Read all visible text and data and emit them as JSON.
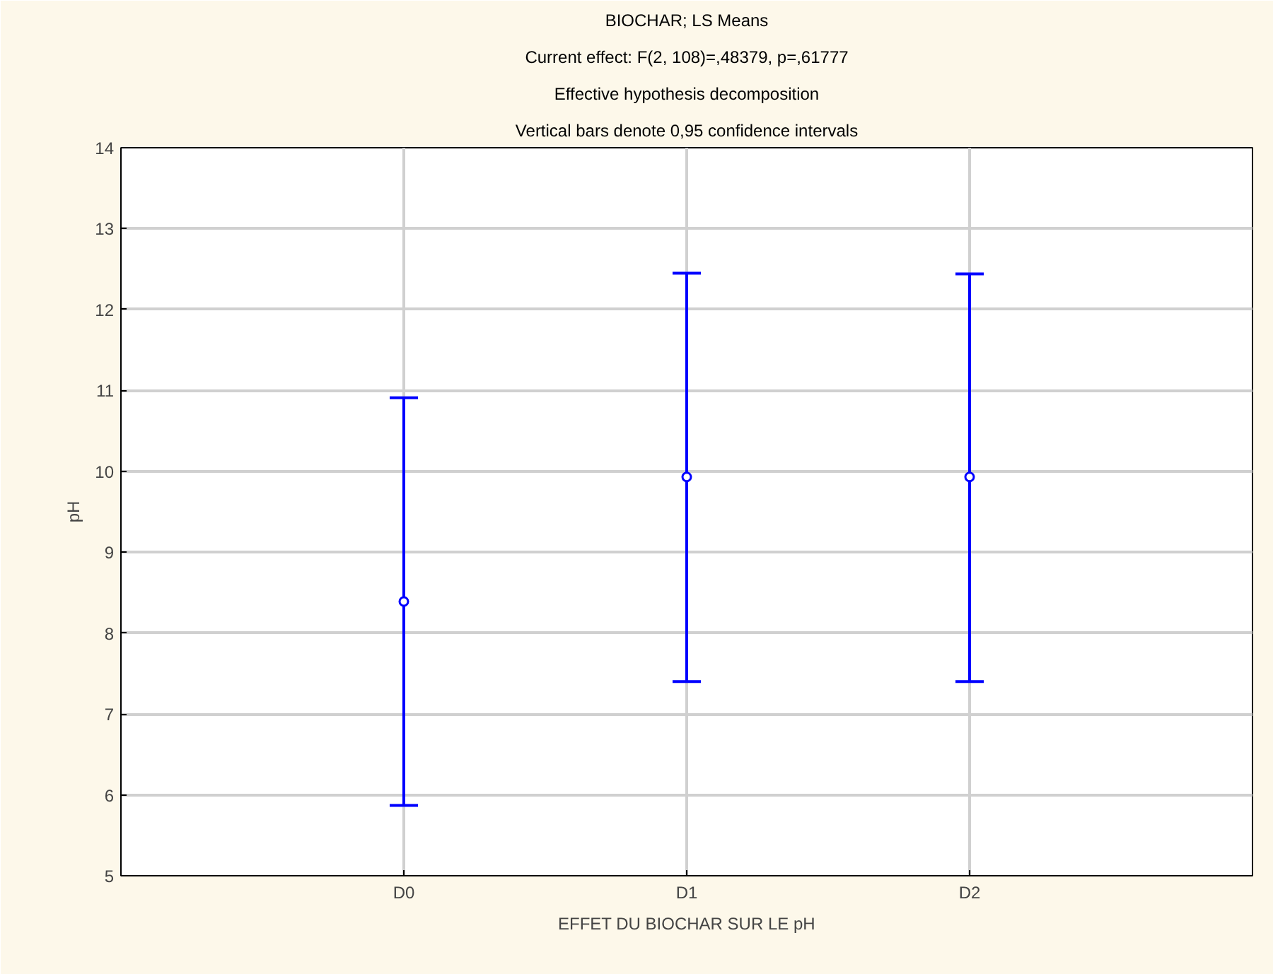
{
  "chart_data": {
    "type": "scatter",
    "title": "BIOCHAR; LS Means",
    "subtitle": "Current effect: F(2, 108)=,48379, p=,61777",
    "annotations": [
      "Effective hypothesis decomposition",
      "Vertical bars denote 0,95 confidence intervals"
    ],
    "xlabel": "EFFET DU BIOCHAR SUR LE pH",
    "ylabel": "pH",
    "categories": [
      "D0",
      "D1",
      "D2"
    ],
    "series": [
      {
        "color": "#0000ff",
        "values": [
          8.39,
          9.93,
          9.93
        ],
        "errors": [
          [
            5.87,
            10.91
          ],
          [
            7.4,
            12.45
          ],
          [
            7.4,
            12.44
          ]
        ]
      }
    ],
    "ylim": [
      5,
      14
    ],
    "yticks": [
      5,
      6,
      7,
      8,
      9,
      10,
      11,
      12,
      13,
      14
    ],
    "grid": true,
    "marker": "circle"
  }
}
